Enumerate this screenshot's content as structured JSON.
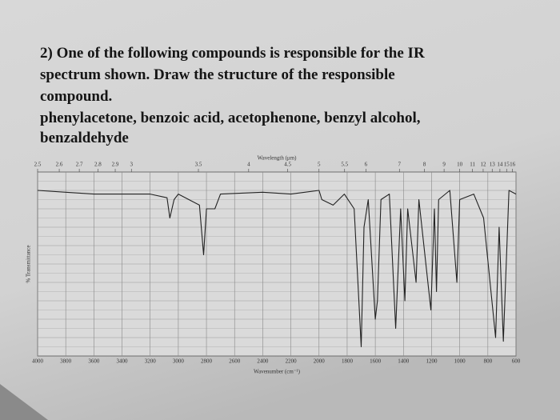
{
  "question": {
    "lines": [
      "2)  One of the following compounds is responsible for the IR",
      "spectrum shown. Draw the structure of the responsible",
      "compound.",
      "phenylacetone, benzoic acid, acetophenone, benzyl alcohol,",
      "benzaldehyde"
    ]
  },
  "chart_data": {
    "type": "line",
    "x2label": "Wavelength (μm)",
    "xlabel": "Wavenumber (cm⁻¹)",
    "ylabel": "% Transmittance",
    "x": [
      4000,
      3800,
      3600,
      3200,
      3080,
      3060,
      3030,
      3000,
      2850,
      2820,
      2800,
      2740,
      2700,
      2400,
      2200,
      2000,
      1980,
      1900,
      1820,
      1750,
      1700,
      1680,
      1650,
      1600,
      1585,
      1560,
      1500,
      1455,
      1420,
      1390,
      1370,
      1310,
      1290,
      1205,
      1180,
      1165,
      1150,
      1070,
      1020,
      1000,
      900,
      830,
      745,
      720,
      690,
      650,
      600
    ],
    "values": [
      90,
      89,
      88,
      88,
      86,
      75,
      85,
      88,
      82,
      55,
      80,
      80,
      88,
      89,
      88,
      90,
      85,
      82,
      88,
      80,
      5,
      70,
      85,
      20,
      30,
      85,
      88,
      15,
      80,
      30,
      80,
      40,
      85,
      25,
      80,
      35,
      85,
      90,
      40,
      85,
      88,
      75,
      10,
      70,
      8,
      90,
      88
    ],
    "color": "#222222",
    "xlim": [
      4000,
      600
    ],
    "ylim": [
      0,
      100
    ],
    "xticks": [
      4000,
      3800,
      3600,
      3400,
      3200,
      3000,
      2800,
      2600,
      2400,
      2200,
      2000,
      1800,
      1600,
      1400,
      1200,
      1000,
      800,
      600
    ],
    "x2ticks": [
      2.5,
      2.6,
      2.7,
      2.8,
      2.9,
      3,
      3.5,
      4,
      4.5,
      5,
      5.5,
      6,
      7,
      8,
      9,
      10,
      11,
      12,
      13,
      14,
      15,
      16
    ],
    "grid": true
  }
}
